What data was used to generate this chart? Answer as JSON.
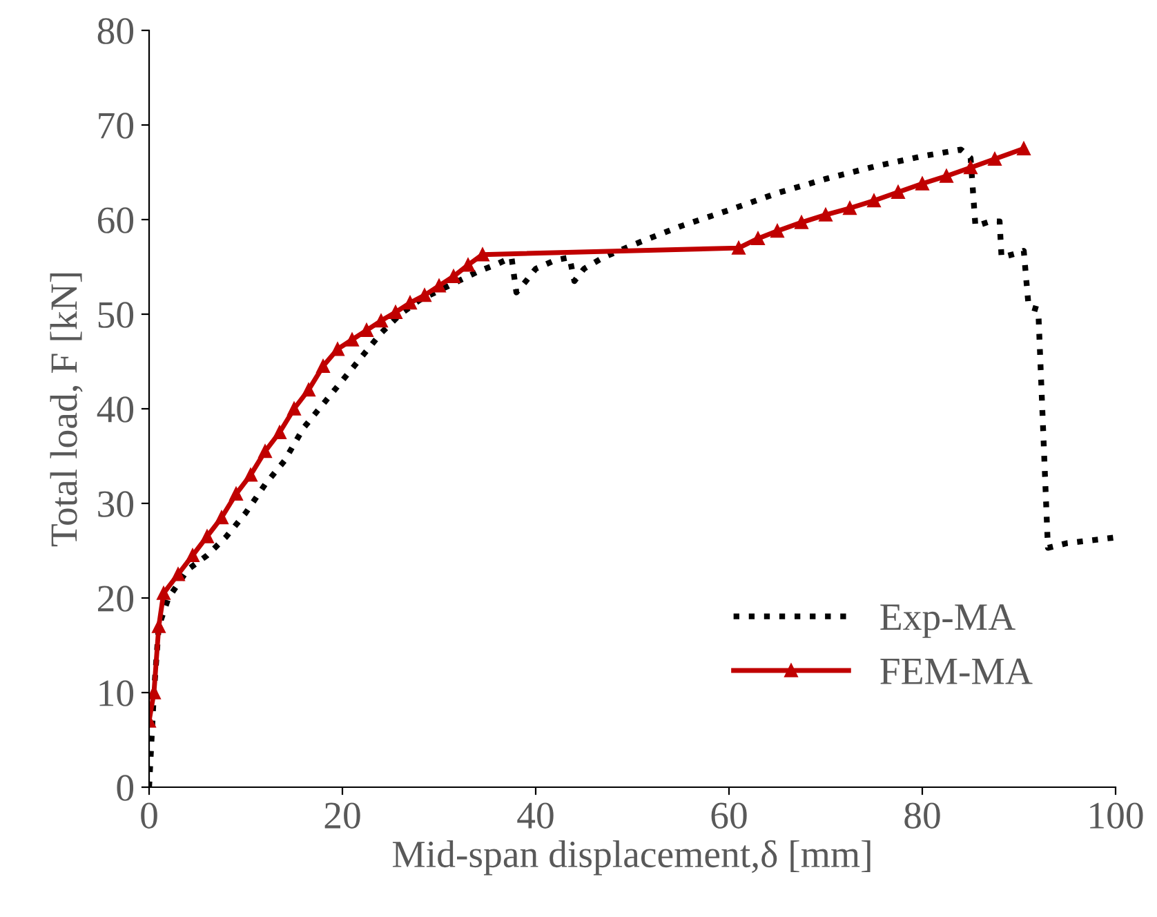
{
  "chart_data": {
    "type": "line",
    "xlabel": "Mid-span displacement,δ [mm]",
    "ylabel": "Total load, F [kN]",
    "xlim": [
      0,
      100
    ],
    "xticks": [
      0,
      20,
      40,
      60,
      80,
      100
    ],
    "ylim": [
      0,
      80
    ],
    "yticks": [
      0,
      10,
      20,
      30,
      40,
      50,
      60,
      70,
      80
    ],
    "grid": false,
    "legend": "bottom right",
    "series": [
      {
        "name": "Exp-MA",
        "color": "#000000",
        "line_style": "dotted",
        "marker": "none",
        "x": [
          0,
          0.5,
          1,
          2,
          4,
          6,
          8,
          10,
          12,
          14,
          16,
          18,
          20,
          22,
          24,
          26,
          28,
          30,
          32,
          34,
          36,
          37.5,
          38,
          39,
          40,
          42,
          43.5,
          44,
          45,
          47,
          50,
          55,
          60,
          65,
          70,
          75,
          80,
          84,
          85,
          85.5,
          87,
          88,
          88.2,
          90,
          90.5,
          91,
          92,
          93,
          95,
          100
        ],
        "values": [
          0,
          10,
          17,
          20,
          23,
          24.5,
          26.5,
          29,
          32,
          34.5,
          38,
          40.5,
          43,
          45.5,
          48,
          50,
          51.5,
          52.5,
          53.5,
          54.5,
          55.3,
          56,
          52.3,
          53.5,
          54.8,
          55.7,
          56,
          53.5,
          54.8,
          56,
          57.3,
          59.3,
          61,
          62.8,
          64.3,
          65.6,
          66.7,
          67.4,
          66.5,
          59.3,
          59.8,
          59.8,
          56,
          56.5,
          56.7,
          50.8,
          50.5,
          25.3,
          25.8,
          26.4
        ]
      },
      {
        "name": "FEM-MA",
        "color": "#c00000",
        "line_style": "solid",
        "marker": "triangle",
        "x": [
          0,
          0.5,
          1,
          1.5,
          3,
          4.5,
          6,
          7.5,
          9,
          10.5,
          12,
          13.5,
          15,
          16.5,
          18,
          19.5,
          21,
          22.5,
          24,
          25.5,
          27,
          28.5,
          30,
          31.5,
          33,
          34.5,
          61,
          63,
          65,
          67.5,
          70,
          72.5,
          75,
          77.5,
          80,
          82.5,
          85,
          87.5,
          90.5
        ],
        "values": [
          7,
          10,
          17,
          20.5,
          22.5,
          24.5,
          26.5,
          28.5,
          31,
          33,
          35.5,
          37.5,
          40,
          42,
          44.5,
          46.3,
          47.3,
          48.3,
          49.3,
          50.2,
          51.2,
          52,
          53,
          54,
          55.2,
          56.3,
          57,
          58,
          58.8,
          59.7,
          60.5,
          61.2,
          62,
          62.9,
          63.8,
          64.6,
          65.5,
          66.4,
          67.5
        ]
      }
    ]
  }
}
